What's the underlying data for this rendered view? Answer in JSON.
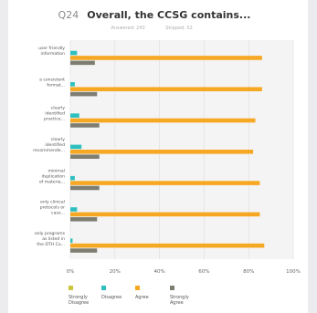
{
  "chart_data": {
    "type": "bar",
    "orientation": "horizontal",
    "title_qnum": "Q24",
    "title": "Overall, the CCSG contains...",
    "answered": "Answered: 243",
    "skipped": "Skipped: 52",
    "categories": [
      [
        "user friendly",
        "information"
      ],
      [
        "a consistent",
        "format..."
      ],
      [
        "clearly",
        "identified",
        "practice..."
      ],
      [
        "clearly",
        "identified",
        "recommende..."
      ],
      [
        "minimal",
        "duplication",
        "of materia..."
      ],
      [
        "only clinical",
        "protocols or",
        "case..."
      ],
      [
        "only programs",
        "as listed in",
        "the DTH Co..."
      ]
    ],
    "series": [
      {
        "name": "Strongly Disagree",
        "legend": [
          "Strongly",
          "Disagree"
        ],
        "color": "#c8c83a",
        "values": [
          0,
          0,
          0,
          0,
          0,
          0,
          0
        ]
      },
      {
        "name": "Disagree",
        "legend": [
          "Disagree"
        ],
        "color": "#2dbfbf",
        "values": [
          3,
          2,
          4,
          5,
          2,
          3,
          1
        ]
      },
      {
        "name": "Agree",
        "legend": [
          "Agree"
        ],
        "color": "#f7a823",
        "values": [
          86,
          86,
          83,
          82,
          85,
          85,
          87
        ]
      },
      {
        "name": "Strongly Agree",
        "legend": [
          "Strongly",
          "Agree"
        ],
        "color": "#7d7d72",
        "values": [
          11,
          12,
          13,
          13,
          13,
          12,
          12
        ]
      }
    ],
    "x_ticks": [
      "0%",
      "20%",
      "40%",
      "60%",
      "80%",
      "100%"
    ],
    "xlim": [
      0,
      100
    ],
    "grid": true,
    "legend_position": "bottom"
  }
}
